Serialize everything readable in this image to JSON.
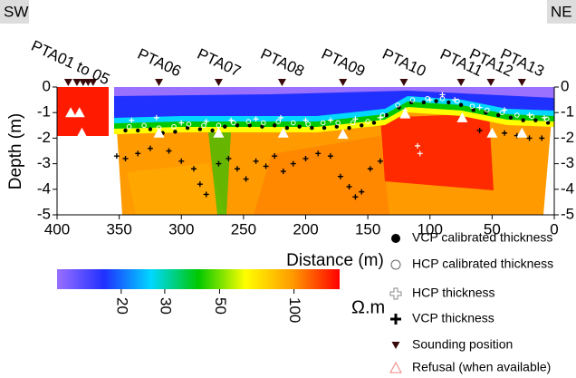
{
  "chart_data": {
    "type": "section",
    "x_label": "Distance (m)",
    "y_label": "Depth (m)",
    "left_label": "SW",
    "right_label": "NE",
    "xlim": [
      400,
      0
    ],
    "xticks": [
      400,
      350,
      300,
      250,
      200,
      150,
      100,
      50,
      0
    ],
    "ylim": [
      -5,
      0
    ],
    "yticks": [
      0,
      -1,
      -2,
      -3,
      -4,
      -5
    ],
    "sounding_labels": [
      "PTA01 to 05",
      "PTA06",
      "PTA07",
      "PTA08",
      "PTA09",
      "PTA10",
      "PTA11",
      "PTA12",
      "PTA13"
    ],
    "colorbar": {
      "unit": "Ω.m",
      "clim": [
        11,
        153
      ],
      "log": true,
      "ticks": [
        20,
        30,
        50,
        100
      ],
      "colors": [
        "#9a70ff",
        "#2030ff",
        "#00d8ff",
        "#00c800",
        "#ffff00",
        "#ff9a00",
        "#ff0000"
      ]
    },
    "series": [
      {
        "name": "VCP calibrated thickness",
        "marker": "dot",
        "color": "#000000",
        "x": [
          345,
          335,
          325,
          315,
          305,
          295,
          285,
          275,
          265,
          255,
          245,
          235,
          225,
          215,
          205,
          195,
          185,
          175,
          165,
          155,
          145,
          135,
          125,
          115,
          105,
          95,
          85,
          75,
          65,
          55,
          45,
          35,
          25,
          15,
          5
        ],
        "y": [
          -1.7,
          -1.7,
          -1.65,
          -1.8,
          -1.75,
          -1.6,
          -1.65,
          -1.7,
          -1.55,
          -1.5,
          -1.5,
          -1.55,
          -1.5,
          -1.6,
          -1.55,
          -1.6,
          -1.6,
          -1.55,
          -1.6,
          -1.5,
          -1.4,
          -1.1,
          -0.8,
          -0.6,
          -0.6,
          -0.55,
          -0.6,
          -0.7,
          -0.9,
          -1,
          -1.1,
          -1.2,
          -1.3,
          -1.3,
          -1.4
        ]
      },
      {
        "name": "HCP calibrated thickness",
        "marker": "circle",
        "color": "#ffffff",
        "x": [
          342,
          330,
          318,
          306,
          294,
          282,
          270,
          258,
          246,
          234,
          222,
          210,
          198,
          186,
          174,
          162,
          150,
          138,
          126,
          114,
          102,
          90,
          78,
          66,
          54,
          42,
          30,
          18,
          6
        ],
        "y": [
          -1.55,
          -1.5,
          -1.6,
          -1.55,
          -1.45,
          -1.5,
          -1.5,
          -1.4,
          -1.35,
          -1.4,
          -1.35,
          -1.4,
          -1.45,
          -1.4,
          -1.4,
          -1.4,
          -1.35,
          -1.1,
          -0.7,
          -0.5,
          -0.45,
          -0.45,
          -0.55,
          -0.75,
          -0.9,
          -1,
          -1.1,
          -1.15,
          -1.25
        ]
      },
      {
        "name": "HCP thickness",
        "marker": "plus-open",
        "color": "#ffffff",
        "x": [
          340,
          320,
          300,
          280,
          260,
          240,
          220,
          200,
          180,
          160,
          140,
          120,
          110,
          108,
          100,
          90,
          80,
          60,
          40,
          20,
          8
        ],
        "y": [
          -1.3,
          -1.2,
          -1.4,
          -1.35,
          -1.3,
          -1.25,
          -1.2,
          -1.3,
          -1.3,
          -1.25,
          -1.2,
          -0.9,
          -2.3,
          -2.6,
          -0.5,
          -0.3,
          -0.5,
          -0.8,
          -0.9,
          -1.1,
          -1.2
        ]
      },
      {
        "name": "VCP thickness",
        "marker": "plus",
        "color": "#000000",
        "x": [
          352,
          345,
          335,
          325,
          310,
          300,
          290,
          285,
          280,
          270,
          262,
          255,
          248,
          240,
          232,
          225,
          218,
          210,
          200,
          190,
          180,
          172,
          165,
          160,
          155,
          148,
          140,
          60,
          40,
          30,
          20,
          10
        ],
        "y": [
          -2.7,
          -2.8,
          -2.6,
          -2.4,
          -2.5,
          -2.9,
          -3.2,
          -3.8,
          -4.2,
          -3.0,
          -2.8,
          -3.2,
          -3.6,
          -2.9,
          -3.1,
          -2.7,
          -3.3,
          -3.0,
          -2.8,
          -2.6,
          -2.7,
          -3.5,
          -3.9,
          -4.3,
          -4.1,
          -3.2,
          -2.9,
          -1.7,
          -1.8,
          -1.9,
          -2.0,
          -2.0
        ]
      },
      {
        "name": "Sounding position",
        "marker": "triangle-down",
        "color": "#3a0a0a",
        "x": [
          391,
          384,
          379,
          375,
          371,
          318,
          270,
          219,
          170,
          121,
          75,
          51,
          26
        ],
        "y": [
          0,
          0,
          0,
          0,
          0,
          0,
          0,
          0,
          0,
          0,
          0,
          0,
          0
        ]
      },
      {
        "name": "Refusal (when available)",
        "marker": "triangle-up",
        "color": "#ffffff",
        "x": [
          389,
          382,
          380,
          318,
          270,
          218,
          170,
          120,
          74,
          50,
          26
        ],
        "y": [
          -1,
          -1,
          -1.8,
          -1.8,
          -1.8,
          -1.8,
          -1.85,
          -1.05,
          -1.2,
          -1.8,
          -1.8
        ]
      }
    ]
  }
}
